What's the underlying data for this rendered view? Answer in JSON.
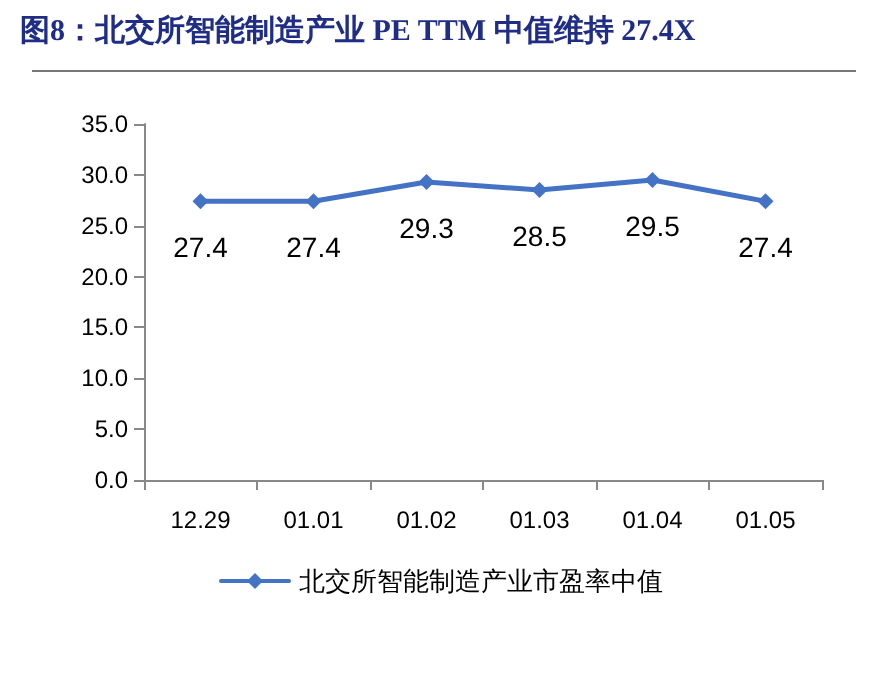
{
  "chart_data": {
    "type": "line",
    "title": "图8：北交所智能制造产业 PE TTM 中值维持 27.4X",
    "categories": [
      "12.29",
      "01.01",
      "01.02",
      "01.03",
      "01.04",
      "01.05"
    ],
    "series": [
      {
        "name": "北交所智能制造产业市盈率中值",
        "color": "#4472c4",
        "values": [
          27.4,
          27.4,
          29.3,
          28.5,
          29.5,
          27.4
        ]
      }
    ],
    "ylim": [
      0,
      35
    ],
    "yticks": [
      {
        "value": 0,
        "label": "0.0"
      },
      {
        "value": 5,
        "label": "5.0"
      },
      {
        "value": 10,
        "label": "10.0"
      },
      {
        "value": 15,
        "label": "15.0"
      },
      {
        "value": 20,
        "label": "20.0"
      },
      {
        "value": 25,
        "label": "25.0"
      },
      {
        "value": 30,
        "label": "30.0"
      },
      {
        "value": 35,
        "label": "35.0"
      }
    ],
    "grid": false,
    "legend": "bottom",
    "marker": "diamond",
    "line_style": "solid",
    "data_labels": true
  }
}
